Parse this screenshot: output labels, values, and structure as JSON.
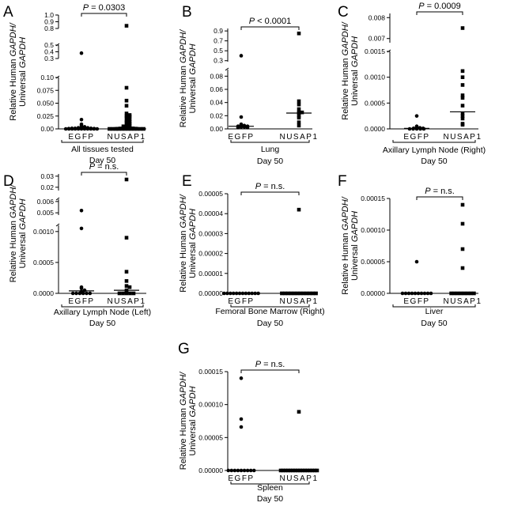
{
  "chart_data": [
    {
      "panel": "A",
      "type": "scatter",
      "ylabel_parts": [
        "Relative Human ",
        "GAPDH",
        "/",
        "Universal ",
        "GAPDH"
      ],
      "categories": [
        "EGFP",
        "NUSAP1"
      ],
      "xlabel": [
        "All tissues tested",
        "Day 50"
      ],
      "significance": "P = 0.0303",
      "sig_prefix": "P",
      "sig_rest": " = 0.0303",
      "segments": [
        {
          "range": [
            0,
            0.1
          ],
          "ticks": [
            "0.00",
            "0.025",
            "0.050",
            "0.075",
            "0.10"
          ],
          "tick_values": [
            0,
            0.025,
            0.05,
            0.075,
            0.1
          ]
        },
        {
          "range": [
            0.3,
            0.5
          ],
          "ticks": [
            "0.3",
            "0.4",
            "0.5"
          ],
          "tick_values": [
            0.3,
            0.4,
            0.5
          ]
        },
        {
          "range": [
            0.8,
            1.0
          ],
          "ticks": [
            "0.8",
            "0.9",
            "1.0"
          ],
          "tick_values": [
            0.8,
            0.9,
            1.0
          ]
        }
      ],
      "series": [
        {
          "name": "EGFP",
          "marker": "circle",
          "values": [
            0.38,
            0.018,
            0.009,
            0.006,
            0.004,
            0.003,
            0.003,
            0.002,
            0.002,
            0.001,
            0.001,
            0.001,
            0.0005,
            0.0005,
            0.0,
            0.0,
            0.0,
            0.0,
            0.0,
            0.0,
            0.0,
            0.0,
            0.0,
            0.0,
            0.0
          ],
          "median": 0.0005
        },
        {
          "name": "NUSAP1",
          "marker": "square",
          "values": [
            0.84,
            0.08,
            0.055,
            0.045,
            0.03,
            0.027,
            0.025,
            0.024,
            0.022,
            0.019,
            0.016,
            0.014,
            0.013,
            0.01,
            0.008,
            0.006,
            0.005,
            0.003,
            0.002,
            0.0015,
            0.001,
            0.0008,
            0.0005,
            0.0003,
            0.0,
            0.0,
            0.0,
            0.0,
            0.0,
            0.0,
            0.0,
            0.0,
            0.0,
            0.0,
            0.0,
            0.0
          ],
          "median": 0.001
        }
      ]
    },
    {
      "panel": "B",
      "type": "scatter",
      "ylabel_parts": [
        "Relative Human ",
        "GAPDH",
        "/",
        "Universal ",
        "GAPDH"
      ],
      "categories": [
        "EGFP",
        "NUSAP1"
      ],
      "xlabel": [
        "Lung",
        "Day 50"
      ],
      "significance": "P < 0.0001",
      "sig_prefix": "P",
      "sig_rest": " < 0.0001",
      "segments": [
        {
          "range": [
            0,
            0.09
          ],
          "ticks": [
            "0.00",
            "0.02",
            "0.04",
            "0.06",
            "0.08"
          ],
          "tick_values": [
            0,
            0.02,
            0.04,
            0.06,
            0.08
          ]
        },
        {
          "range": [
            0.28,
            0.95
          ],
          "ticks": [
            "0.3",
            "0.5",
            "0.7",
            "0.9"
          ],
          "tick_values": [
            0.3,
            0.5,
            0.7,
            0.9
          ]
        }
      ],
      "series": [
        {
          "name": "EGFP",
          "marker": "circle",
          "values": [
            0.4,
            0.018,
            0.007,
            0.006,
            0.005,
            0.004,
            0.004,
            0.003,
            0.003,
            0.002,
            0.002
          ],
          "median": 0.004
        },
        {
          "name": "NUSAP1",
          "marker": "square",
          "values": [
            0.85,
            0.042,
            0.037,
            0.03,
            0.025,
            0.025,
            0.024,
            0.02,
            0.017,
            0.01,
            0.005
          ],
          "median": 0.024
        }
      ]
    },
    {
      "panel": "C",
      "type": "scatter",
      "ylabel_parts": [
        "Relative Human ",
        "GAPDH",
        "/",
        "Universal ",
        "GAPDH"
      ],
      "categories": [
        "EGFP",
        "NUSAP1"
      ],
      "xlabel": [
        "Axillary Lymph Node (Right)",
        "Day 50"
      ],
      "significance": "P = 0.0009",
      "sig_prefix": "P",
      "sig_rest": " = 0.0009",
      "segments": [
        {
          "range": [
            0,
            0.0015
          ],
          "ticks": [
            "0.0000",
            "0.0005",
            "0.0010",
            "0.0015"
          ],
          "tick_values": [
            0,
            0.0005,
            0.001,
            0.0015
          ]
        },
        {
          "range": [
            0.0068,
            0.0082
          ],
          "ticks": [
            "0.007",
            "0.008"
          ],
          "tick_values": [
            0.007,
            0.008
          ]
        }
      ],
      "series": [
        {
          "name": "EGFP",
          "marker": "circle",
          "values": [
            0.00025,
            5e-05,
            3e-05,
            2e-05,
            1e-05,
            1e-05,
            0.0,
            0.0,
            0.0,
            0.0,
            0.0
          ],
          "median": 1e-05
        },
        {
          "name": "NUSAP1",
          "marker": "square",
          "values": [
            0.0075,
            0.00112,
            0.001,
            0.00085,
            0.00065,
            0.0006,
            0.00045,
            0.0003,
            0.00025,
            0.0002,
            0.0001,
            8e-05
          ],
          "median": 0.00033
        }
      ]
    },
    {
      "panel": "D",
      "type": "scatter",
      "ylabel_parts": [
        "Relative Human ",
        "GAPDH",
        "/",
        "Universal ",
        "GAPDH"
      ],
      "categories": [
        "EGFP",
        "NUSAP1"
      ],
      "xlabel": [
        "Axillary Lymph Node (Left)",
        "Day 50"
      ],
      "significance": "P = n.s.",
      "sig_prefix": "P",
      "sig_rest": " = n.s.",
      "segments": [
        {
          "range": [
            0,
            0.0011
          ],
          "ticks": [
            "0.0000",
            "0.0005",
            "0.0010"
          ],
          "tick_values": [
            0,
            0.0005,
            0.001
          ]
        },
        {
          "range": [
            0.0048,
            0.0062
          ],
          "ticks": [
            "0.005",
            "0.006"
          ],
          "tick_values": [
            0.005,
            0.006
          ]
        },
        {
          "range": [
            0.017,
            0.032
          ],
          "ticks": [
            "0.02",
            "0.03"
          ],
          "tick_values": [
            0.02,
            0.03
          ]
        }
      ],
      "series": [
        {
          "name": "EGFP",
          "marker": "circle",
          "values": [
            0.0052,
            0.00105,
            0.0001,
            8e-05,
            5e-05,
            3e-05,
            0.0,
            0.0,
            0.0,
            0.0,
            0.0,
            0.0
          ],
          "median": 4e-05
        },
        {
          "name": "NUSAP1",
          "marker": "square",
          "values": [
            0.027,
            0.0009,
            0.00035,
            0.0002,
            0.00012,
            0.0001,
            5e-05,
            3e-05,
            0.0,
            0.0,
            0.0,
            0.0,
            0.0
          ],
          "median": 5e-05
        }
      ]
    },
    {
      "panel": "E",
      "type": "scatter",
      "ylabel_parts": [
        "Relative Human ",
        "GAPDH",
        "/",
        "Universal ",
        "GAPDH"
      ],
      "categories": [
        "EGFP",
        "NUSAP1"
      ],
      "xlabel": [
        "Femoral Bone Marrow (Right)",
        "Day 50"
      ],
      "significance": "P = n.s.",
      "sig_prefix": "P",
      "sig_rest": " = n.s.",
      "segments": [
        {
          "range": [
            0,
            5e-05
          ],
          "ticks": [
            "0.00000",
            "0.00001",
            "0.00002",
            "0.00003",
            "0.00004",
            "0.00005"
          ],
          "tick_values": [
            0,
            1e-05,
            2e-05,
            3e-05,
            4e-05,
            5e-05
          ]
        }
      ],
      "series": [
        {
          "name": "EGFP",
          "marker": "circle",
          "values": [
            0,
            0,
            0,
            0,
            0,
            0,
            0,
            0,
            0,
            0,
            0,
            0
          ],
          "median": 0
        },
        {
          "name": "NUSAP1",
          "marker": "square",
          "values": [
            4.2e-05,
            0,
            0,
            0,
            0,
            0,
            0,
            0,
            0,
            0,
            0,
            0,
            0
          ],
          "median": 0
        }
      ]
    },
    {
      "panel": "F",
      "type": "scatter",
      "ylabel_parts": [
        "Relative Human ",
        "GAPDH",
        "/",
        "Universal ",
        "GAPDH"
      ],
      "categories": [
        "EGFP",
        "NUSAP1"
      ],
      "xlabel": [
        "Liver",
        "Day 50"
      ],
      "significance": "P = n.s.",
      "sig_prefix": "P",
      "sig_rest": " = n.s.",
      "segments": [
        {
          "range": [
            0,
            0.00015
          ],
          "ticks": [
            "0.00000",
            "0.00005",
            "0.00010",
            "0.00015"
          ],
          "tick_values": [
            0,
            5e-05,
            0.0001,
            0.00015
          ]
        }
      ],
      "series": [
        {
          "name": "EGFP",
          "marker": "circle",
          "values": [
            5e-05,
            0,
            0,
            0,
            0,
            0,
            0,
            0,
            0,
            0,
            0
          ],
          "median": 0
        },
        {
          "name": "NUSAP1",
          "marker": "square",
          "values": [
            0.00014,
            0.00011,
            7e-05,
            4e-05,
            0,
            0,
            0,
            0,
            0,
            0,
            0,
            0
          ],
          "median": 0
        }
      ]
    },
    {
      "panel": "G",
      "type": "scatter",
      "ylabel_parts": [
        "Relative Human ",
        "GAPDH",
        "/",
        "Universal ",
        "GAPDH"
      ],
      "categories": [
        "EGFP",
        "NUSAP1"
      ],
      "xlabel": [
        "Spleen",
        "Day 50"
      ],
      "significance": "P = n.s.",
      "sig_prefix": "P",
      "sig_rest": " = n.s.",
      "segments": [
        {
          "range": [
            0,
            0.00015
          ],
          "ticks": [
            "0.00000",
            "0.00005",
            "0.00010",
            "0.00015"
          ],
          "tick_values": [
            0,
            5e-05,
            0.0001,
            0.00015
          ]
        }
      ],
      "series": [
        {
          "name": "EGFP",
          "marker": "circle",
          "values": [
            0.00014,
            7.8e-05,
            6.6e-05,
            0,
            0,
            0,
            0,
            0,
            0,
            0,
            0,
            0
          ],
          "median": 0
        },
        {
          "name": "NUSAP1",
          "marker": "square",
          "values": [
            8.9e-05,
            0,
            0,
            0,
            0,
            0,
            0,
            0,
            0,
            0,
            0,
            0,
            0,
            0,
            0,
            0,
            0
          ],
          "median": 0
        }
      ]
    }
  ]
}
